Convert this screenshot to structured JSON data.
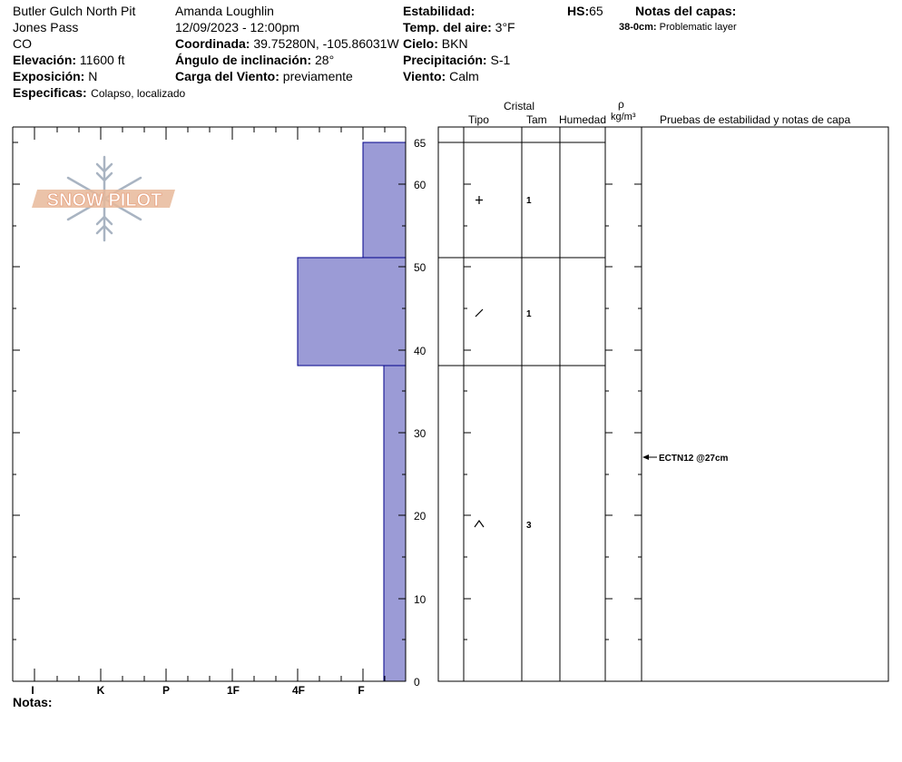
{
  "header": {
    "pit_name": "Butler Gulch North Pit",
    "area": "Jones Pass",
    "state": "CO",
    "elevation_label": "Elevación:",
    "elevation_value": "11600 ft",
    "aspect_label": "Exposición:",
    "aspect_value": "N",
    "specifics_label": "Especificas:",
    "specifics_value": "Colapso, localizado",
    "observer": "Amanda Loughlin",
    "datetime": "12/09/2023 - 12:00pm",
    "coord_label": "Coordinada:",
    "coord_value": "39.75280N, -105.86031W",
    "slope_label": "Ángulo de inclinación:",
    "slope_value": "28°",
    "wind_load_label": "Carga del Viento:",
    "wind_load_value": "previamente",
    "stability_label": "Estabilidad:",
    "stability_value": "",
    "air_temp_label": "Temp. del aire:",
    "air_temp_value": "3°F",
    "sky_label": "Cielo:",
    "sky_value": "BKN",
    "precip_label": "Precipitación:",
    "precip_value": "S-1",
    "wind_label": "Viento:",
    "wind_value": "Calm",
    "hs_label": "HS:",
    "hs_value": "65",
    "layer_notes_label": "Notas del capas:",
    "layer_note_depth": "38-0cm:",
    "layer_note_text": "Problematic layer"
  },
  "logo": {
    "text": "SNOW PILOT",
    "color": "#e8b89a"
  },
  "columns": {
    "crystal": "Cristal",
    "type": "Tipo",
    "size": "Tam",
    "moisture": "Humedad",
    "rho": "ρ",
    "density_unit": "kg/m³",
    "tests": "Pruebas de estabilidad y notas de capa"
  },
  "hardness_labels": [
    "I",
    "K",
    "P",
    "1F",
    "4F",
    "F"
  ],
  "depth_ticks": [
    "0",
    "10",
    "20",
    "30",
    "40",
    "50",
    "60",
    "65"
  ],
  "notes_label": "Notas:",
  "layers": [
    {
      "top_cm": 65,
      "bottom_cm": 51,
      "hardness": "F",
      "grain_icon": "plus-icon",
      "size": "1"
    },
    {
      "top_cm": 51,
      "bottom_cm": 38,
      "hardness": "4F",
      "grain_icon": "slash-icon",
      "size": "1"
    },
    {
      "top_cm": 38,
      "bottom_cm": 0,
      "hardness": "F-",
      "grain_icon": "caret-icon",
      "size": "3"
    }
  ],
  "tests": [
    {
      "depth_cm": 27,
      "text": "ECTN12 @27cm"
    }
  ],
  "colors": {
    "layer_fill": "#9b9bd6",
    "layer_stroke": "#00008b"
  }
}
